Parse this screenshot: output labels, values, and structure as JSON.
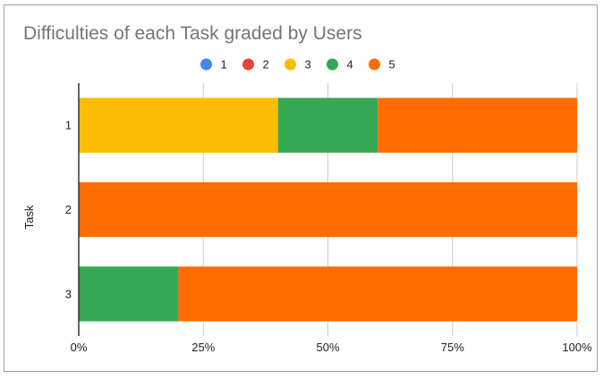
{
  "chart_data": {
    "type": "bar",
    "orientation": "horizontal",
    "stacked": "percent",
    "title": "Difficulties of each Task graded by Users",
    "ylabel": "Task",
    "xlabel": "",
    "categories": [
      "1",
      "2",
      "3"
    ],
    "series": [
      {
        "name": "1",
        "color": "#4285f4",
        "values": [
          0,
          0,
          0
        ]
      },
      {
        "name": "2",
        "color": "#ea4335",
        "values": [
          0,
          0,
          0
        ]
      },
      {
        "name": "3",
        "color": "#fbbc04",
        "values": [
          40,
          0,
          0
        ]
      },
      {
        "name": "4",
        "color": "#34a853",
        "values": [
          20,
          0,
          20
        ]
      },
      {
        "name": "5",
        "color": "#ff6d01",
        "values": [
          40,
          100,
          80
        ]
      }
    ],
    "xlim": [
      0,
      100
    ],
    "xticks": [
      "0%",
      "25%",
      "50%",
      "75%",
      "100%"
    ],
    "grid": true,
    "legend_position": "top"
  }
}
